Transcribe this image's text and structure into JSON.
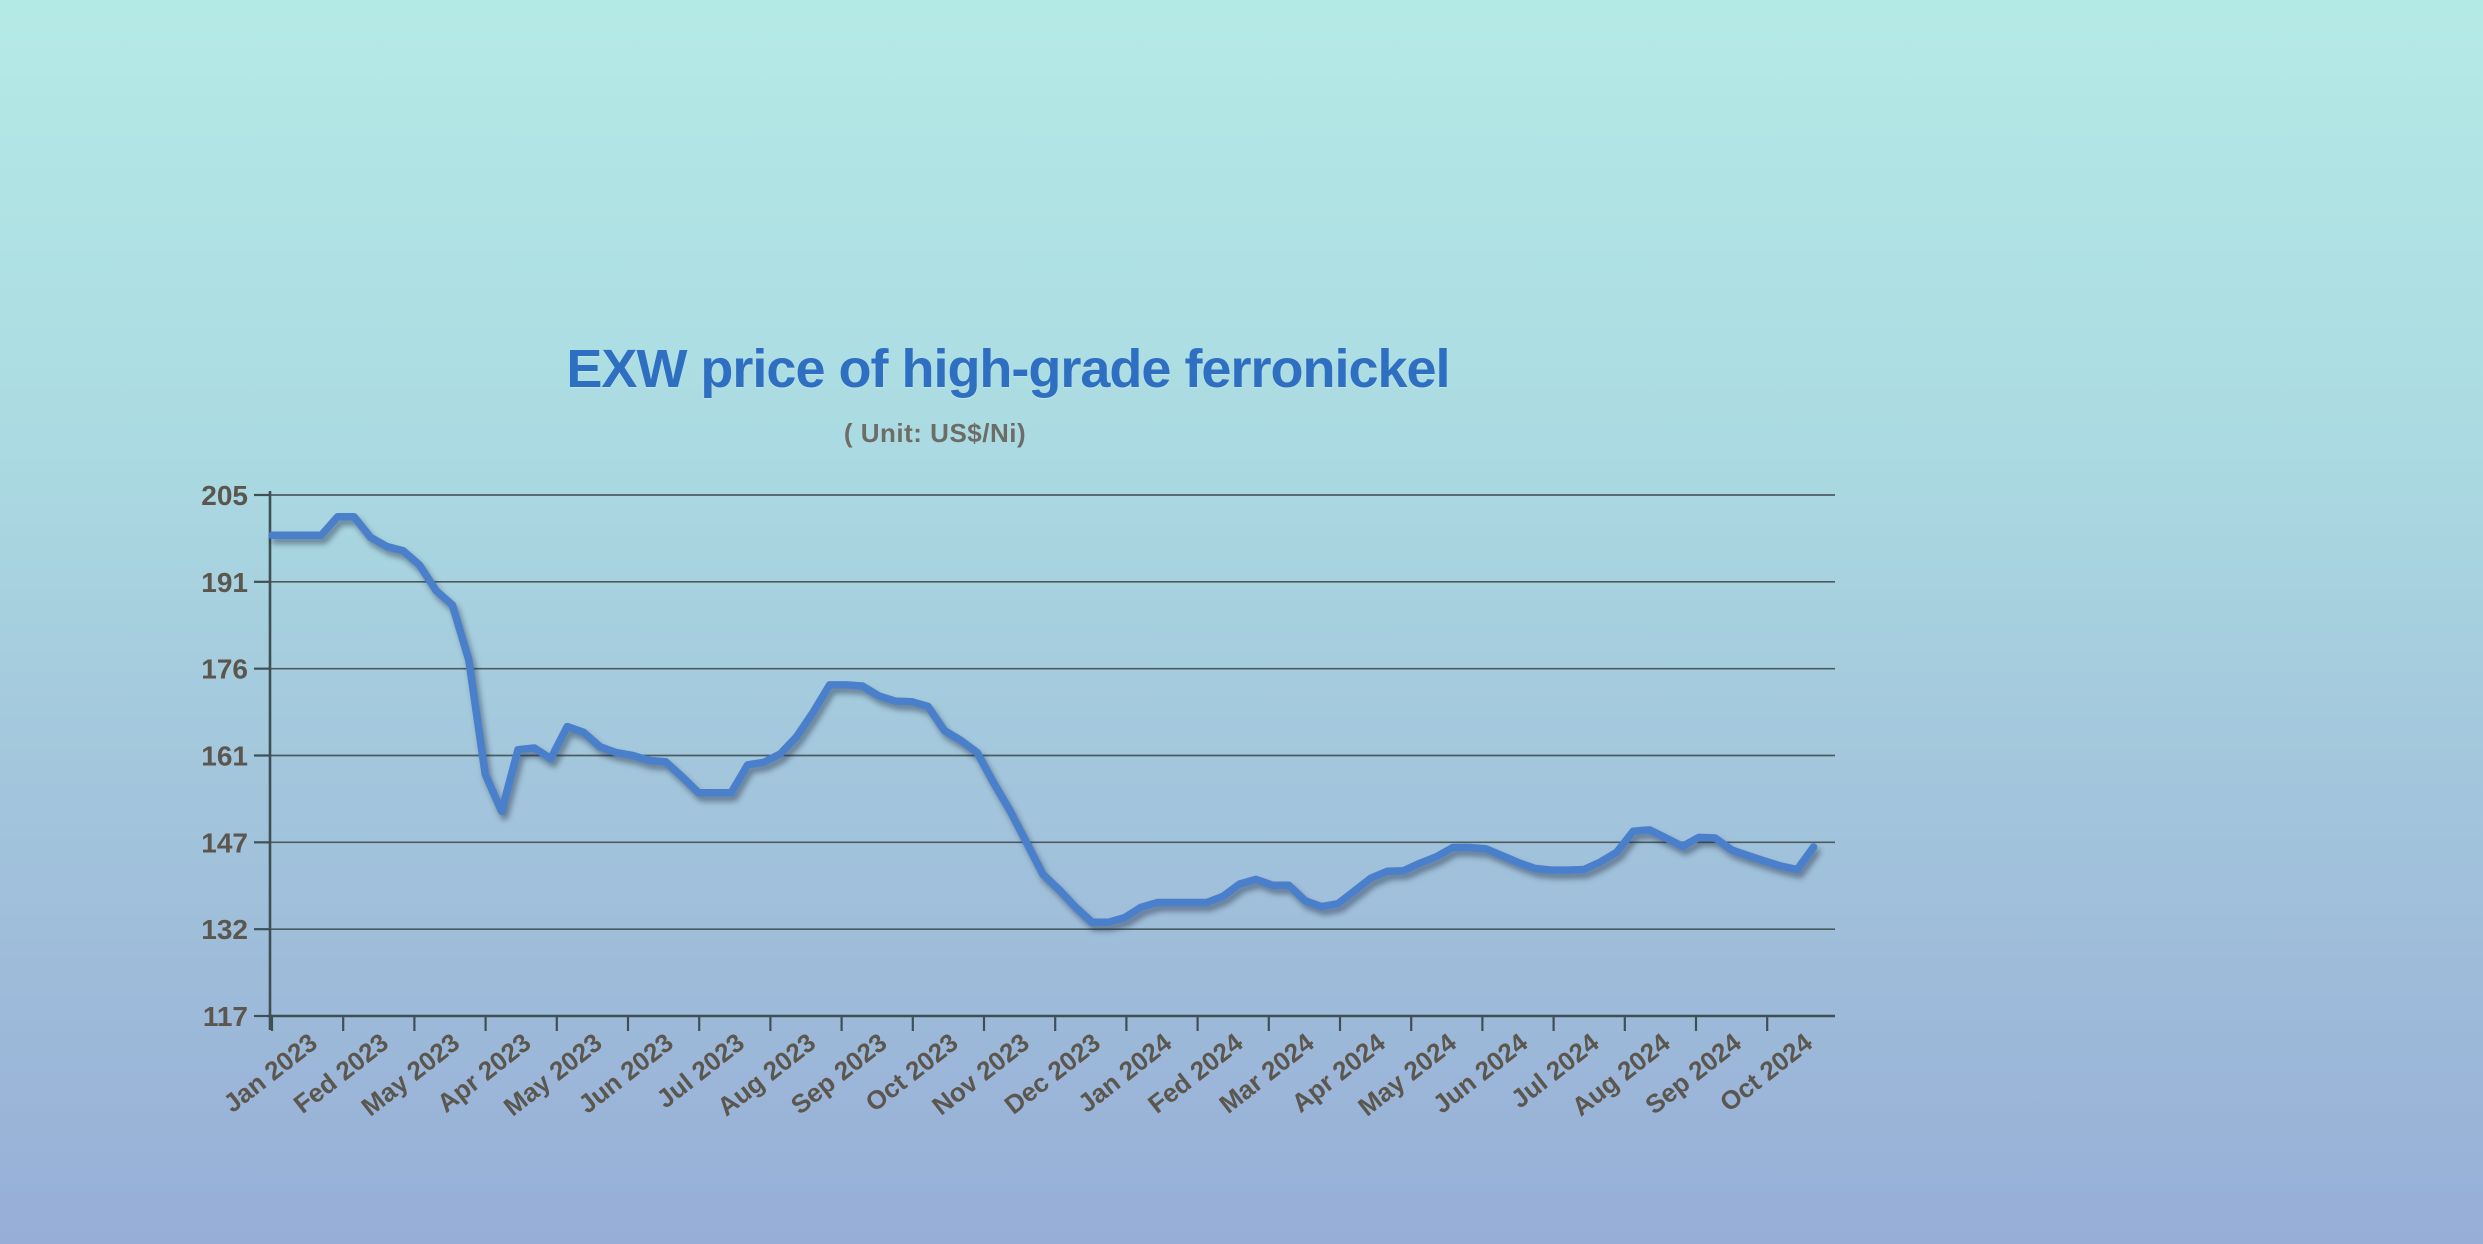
{
  "title": {
    "text": "EXW price of high-grade ferronickel",
    "color": "#2f6fc1"
  },
  "subtitle": {
    "text": "( Unit: US$/Ni)",
    "color": "#6e6c66"
  },
  "chart_data": {
    "type": "line",
    "title": "EXW price of high-grade ferronickel",
    "unit_label": "( Unit: US$/Ni)",
    "ylabel": "",
    "xlabel": "",
    "ylim": [
      117,
      205
    ],
    "y_ticks": [
      117,
      132,
      147,
      161,
      176,
      191,
      205
    ],
    "grid": true,
    "legend": false,
    "x_interval": "weekly",
    "x_tick_labels": [
      "Jan 2023",
      "Fed 2023",
      "May 2023",
      "Apr 2023",
      "May 2023",
      "Jun 2023",
      "Jul 2023",
      "Aug 2023",
      "Sep 2023",
      "Oct 2023",
      "Nov 2023",
      "Dec 2023",
      "Jan 2024",
      "Fed 2024",
      "Mar 2024",
      "Apr 2024",
      "May 2024",
      "Jun 2024",
      "Jul 2024",
      "Aug 2024",
      "Sep 2024",
      "Oct 2024"
    ],
    "line_color": "#4a80cb",
    "series": [
      {
        "name": "EXW price of high-grade ferronickel (US$/Ni)",
        "values": [
          198.5,
          198.5,
          198.5,
          198.5,
          201.5,
          201.5,
          198.2,
          196.7,
          196.0,
          193.7,
          189.5,
          187.0,
          177.5,
          158.0,
          152.0,
          162.0,
          162.3,
          160.5,
          166.0,
          165.0,
          162.5,
          161.5,
          161.0,
          160.2,
          160.0,
          157.6,
          155.0,
          155.0,
          155.0,
          159.5,
          159.9,
          161.3,
          164.3,
          168.5,
          173.2,
          173.2,
          173.0,
          171.3,
          170.4,
          170.3,
          169.5,
          165.3,
          163.6,
          161.5,
          156.6,
          152.1,
          147.0,
          141.5,
          138.8,
          135.8,
          133.2,
          133.2,
          134.0,
          135.8,
          136.6,
          136.6,
          136.6,
          136.6,
          137.7,
          139.8,
          140.6,
          139.6,
          139.6,
          136.9,
          135.9,
          136.4,
          138.6,
          140.8,
          142.0,
          142.1,
          143.4,
          144.5,
          146.1,
          146.1,
          145.9,
          144.7,
          143.5,
          142.5,
          142.2,
          142.2,
          142.3,
          143.6,
          145.3,
          148.8,
          149.0,
          147.7,
          146.3,
          147.8,
          147.7,
          145.7,
          144.7,
          143.8,
          142.9,
          142.3,
          146.2
        ]
      }
    ]
  }
}
